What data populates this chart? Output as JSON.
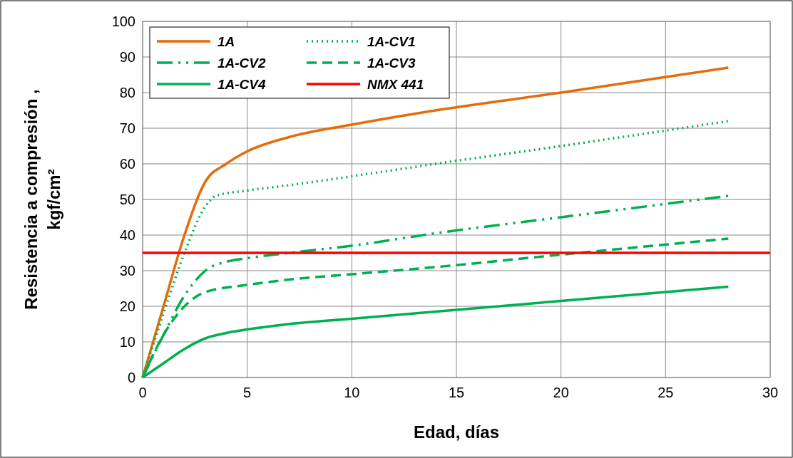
{
  "chart_data": {
    "type": "line",
    "xlabel": "Edad, días",
    "ylabel": "Resistencia a compresión , kgf/cm²",
    "xlim": [
      0,
      30
    ],
    "xticks": [
      0,
      5,
      10,
      15,
      20,
      25,
      30
    ],
    "ylim": [
      0,
      100
    ],
    "yticks": [
      0,
      10,
      20,
      30,
      40,
      50,
      60,
      70,
      80,
      90,
      100
    ],
    "grid": true,
    "legend": "top left",
    "series": [
      {
        "name": "1A",
        "color": "#e46c0a",
        "line_style": "solid",
        "x": [
          0,
          1,
          2,
          3,
          4,
          5,
          7,
          10,
          14,
          20,
          28
        ],
        "values": [
          0,
          20,
          40,
          55,
          60,
          63.5,
          67.5,
          71,
          75,
          80,
          87
        ]
      },
      {
        "name": "1A-CV1",
        "color": "#00b050",
        "line_style": "dotted",
        "x": [
          0,
          1,
          2,
          3,
          3.5,
          5,
          7,
          10,
          14,
          20,
          28
        ],
        "values": [
          0,
          18,
          35,
          48,
          51,
          52.5,
          54,
          56.5,
          60,
          65,
          72
        ]
      },
      {
        "name": "1A-CV2",
        "color": "#00b050",
        "line_style": "dashdot",
        "x": [
          0,
          1,
          2,
          3,
          4,
          5,
          7,
          10,
          14,
          20,
          28
        ],
        "values": [
          0,
          12,
          23,
          30,
          32.5,
          33.5,
          35,
          37,
          40.5,
          45,
          51
        ]
      },
      {
        "name": "1A-CV3",
        "color": "#00b050",
        "line_style": "dashed",
        "x": [
          0,
          1,
          2,
          3,
          5,
          7,
          10,
          14,
          20,
          28
        ],
        "values": [
          0,
          12,
          20,
          24,
          26,
          27.5,
          29,
          31,
          34.5,
          39
        ]
      },
      {
        "name": "1A-CV4",
        "color": "#00b050",
        "line_style": "solid",
        "x": [
          0,
          1,
          2,
          3,
          4,
          5,
          7,
          10,
          14,
          20,
          28
        ],
        "values": [
          0,
          4,
          8,
          11,
          12.5,
          13.5,
          15,
          16.5,
          18.5,
          21.5,
          25.5
        ]
      },
      {
        "name": "NMX 441",
        "color": "#ff0000",
        "line_style": "solid",
        "x": [
          0,
          30
        ],
        "values": [
          35,
          35
        ]
      }
    ]
  }
}
